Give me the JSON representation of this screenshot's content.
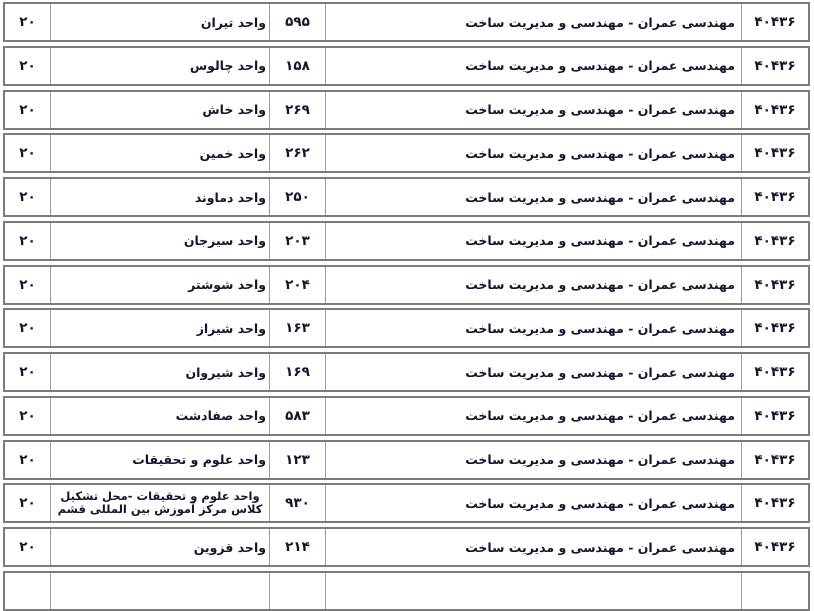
{
  "colors": {
    "text": "#15152e",
    "border_outer": "#7c7c7c",
    "border_inner": "#9e9e9e",
    "background": "#ffffff"
  },
  "table": {
    "rows": [
      {
        "capacity": "۲۰",
        "unit_name": "واحد تیران",
        "unit_code": "۵۹۵",
        "program_name": "مهندسی عمران - مهندسی و مدیریت ساخت",
        "program_code": "۴۰۴۳۶"
      },
      {
        "capacity": "۲۰",
        "unit_name": "واحد چالوس",
        "unit_code": "۱۵۸",
        "program_name": "مهندسی عمران - مهندسی و مدیریت ساخت",
        "program_code": "۴۰۴۳۶"
      },
      {
        "capacity": "۲۰",
        "unit_name": "واحد خاش",
        "unit_code": "۲۶۹",
        "program_name": "مهندسی عمران - مهندسی و مدیریت ساخت",
        "program_code": "۴۰۴۳۶"
      },
      {
        "capacity": "۲۰",
        "unit_name": "واحد خمین",
        "unit_code": "۲۶۲",
        "program_name": "مهندسی عمران - مهندسی و مدیریت ساخت",
        "program_code": "۴۰۴۳۶"
      },
      {
        "capacity": "۲۰",
        "unit_name": "واحد دماوند",
        "unit_code": "۲۵۰",
        "program_name": "مهندسی عمران - مهندسی و مدیریت ساخت",
        "program_code": "۴۰۴۳۶"
      },
      {
        "capacity": "۲۰",
        "unit_name": "واحد سیرجان",
        "unit_code": "۲۰۳",
        "program_name": "مهندسی عمران - مهندسی و مدیریت ساخت",
        "program_code": "۴۰۴۳۶"
      },
      {
        "capacity": "۲۰",
        "unit_name": "واحد شوشتر",
        "unit_code": "۲۰۴",
        "program_name": "مهندسی عمران - مهندسی و مدیریت ساخت",
        "program_code": "۴۰۴۳۶"
      },
      {
        "capacity": "۲۰",
        "unit_name": "واحد شیراز",
        "unit_code": "۱۶۳",
        "program_name": "مهندسی عمران - مهندسی و مدیریت ساخت",
        "program_code": "۴۰۴۳۶"
      },
      {
        "capacity": "۲۰",
        "unit_name": "واحد شیروان",
        "unit_code": "۱۶۹",
        "program_name": "مهندسی عمران - مهندسی و مدیریت ساخت",
        "program_code": "۴۰۴۳۶"
      },
      {
        "capacity": "۲۰",
        "unit_name": "واحد صفادشت",
        "unit_code": "۵۸۳",
        "program_name": "مهندسی عمران - مهندسی و مدیریت ساخت",
        "program_code": "۴۰۴۳۶"
      },
      {
        "capacity": "۲۰",
        "unit_name": "واحد علوم و تحقیقات",
        "unit_code": "۱۲۳",
        "program_name": "مهندسی عمران - مهندسی و مدیریت ساخت",
        "program_code": "۴۰۴۳۶"
      },
      {
        "capacity": "۲۰",
        "unit_name": "واحد علوم و تحقیقات -محل تشکیل کلاس مرکز آموزش بین المللی قشم",
        "unit_code": "۹۳۰",
        "program_name": "مهندسی عمران - مهندسی و مدیریت ساخت",
        "program_code": "۴۰۴۳۶"
      },
      {
        "capacity": "۲۰",
        "unit_name": "واحد قزوین",
        "unit_code": "۲۱۴",
        "program_name": "مهندسی عمران - مهندسی و مدیریت ساخت",
        "program_code": "۴۰۴۳۶"
      }
    ]
  }
}
